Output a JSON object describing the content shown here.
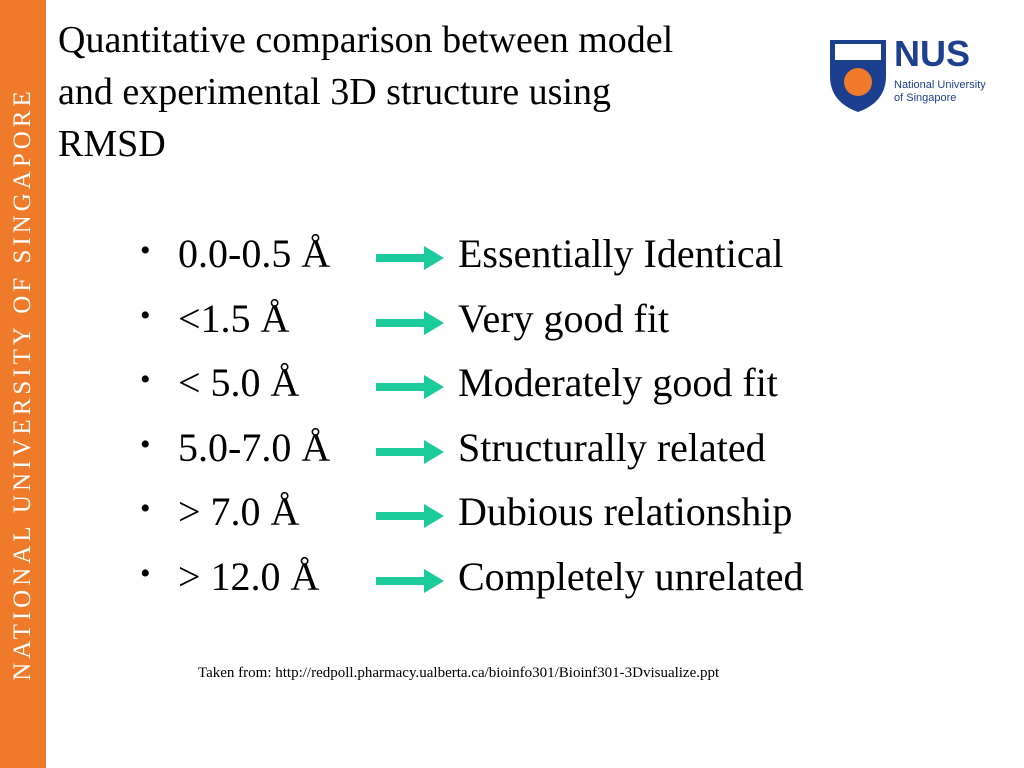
{
  "sidebar": "NATIONAL UNIVERSITY OF SINGAPORE",
  "title": [
    "Quantitative comparison between model",
    "and experimental 3D structure using",
    "RMSD"
  ],
  "logo": {
    "name": "NUS",
    "line1": "National University",
    "line2": "of Singapore"
  },
  "items": [
    {
      "range": "0.0-0.5 Å",
      "meaning": "Essentially Identical"
    },
    {
      "range": "<1.5 Å",
      "meaning": "Very good fit"
    },
    {
      "range": "< 5.0 Å",
      "meaning": "Moderately good fit"
    },
    {
      "range": "5.0-7.0 Å",
      "meaning": "Structurally related"
    },
    {
      "range": "> 7.0 Å",
      "meaning": "Dubious relationship"
    },
    {
      "range": "> 12.0 Å",
      "meaning": "Completely unrelated"
    }
  ],
  "source": "Taken from: http://redpoll.pharmacy.ualberta.ca/bioinfo301/Bioinf301-3Dvisualize.ppt"
}
